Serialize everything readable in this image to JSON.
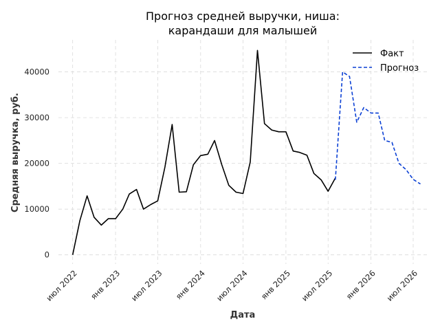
{
  "chart_data": {
    "type": "line",
    "title_lines": [
      "Прогноз средней выручки, ниша:",
      "карандаши для малышей"
    ],
    "xlabel": "Дата",
    "ylabel": "Средняя выручка, руб.",
    "ylim": [
      -2000,
      47000
    ],
    "xlim": [
      "2022-05-01",
      "2026-09-01"
    ],
    "x_ticks": [
      {
        "date": "2022-07-01",
        "label": "июл 2022"
      },
      {
        "date": "2023-01-01",
        "label": "янв 2023"
      },
      {
        "date": "2023-07-01",
        "label": "июл 2023"
      },
      {
        "date": "2024-01-01",
        "label": "янв 2024"
      },
      {
        "date": "2024-07-01",
        "label": "июл 2024"
      },
      {
        "date": "2025-01-01",
        "label": "янв 2025"
      },
      {
        "date": "2025-07-01",
        "label": "июл 2025"
      },
      {
        "date": "2026-01-01",
        "label": "янв 2026"
      },
      {
        "date": "2026-07-01",
        "label": "июл 2026"
      }
    ],
    "y_ticks": [
      {
        "value": 0,
        "label": "0"
      },
      {
        "value": 10000,
        "label": "10000"
      },
      {
        "value": 20000,
        "label": "20000"
      },
      {
        "value": 30000,
        "label": "30000"
      },
      {
        "value": 40000,
        "label": "40000"
      }
    ],
    "grid": true,
    "legend_position": "top-right",
    "series": [
      {
        "name": "Факт",
        "color": "#000000",
        "style": "solid",
        "points": [
          {
            "x": "2022-07-01",
            "y": 0
          },
          {
            "x": "2022-08-01",
            "y": 7500
          },
          {
            "x": "2022-09-01",
            "y": 12900
          },
          {
            "x": "2022-10-01",
            "y": 8200
          },
          {
            "x": "2022-11-01",
            "y": 6500
          },
          {
            "x": "2022-12-01",
            "y": 7900
          },
          {
            "x": "2023-01-01",
            "y": 7900
          },
          {
            "x": "2023-02-01",
            "y": 10000
          },
          {
            "x": "2023-03-01",
            "y": 13300
          },
          {
            "x": "2023-04-01",
            "y": 14300
          },
          {
            "x": "2023-05-01",
            "y": 10000
          },
          {
            "x": "2023-06-01",
            "y": 11000
          },
          {
            "x": "2023-07-01",
            "y": 11800
          },
          {
            "x": "2023-08-01",
            "y": 19200
          },
          {
            "x": "2023-09-01",
            "y": 28500
          },
          {
            "x": "2023-10-01",
            "y": 13700
          },
          {
            "x": "2023-11-01",
            "y": 13800
          },
          {
            "x": "2023-12-01",
            "y": 19700
          },
          {
            "x": "2024-01-01",
            "y": 21700
          },
          {
            "x": "2024-02-01",
            "y": 22000
          },
          {
            "x": "2024-03-01",
            "y": 25000
          },
          {
            "x": "2024-04-01",
            "y": 19700
          },
          {
            "x": "2024-05-01",
            "y": 15200
          },
          {
            "x": "2024-06-01",
            "y": 13700
          },
          {
            "x": "2024-07-01",
            "y": 13400
          },
          {
            "x": "2024-08-01",
            "y": 20300
          },
          {
            "x": "2024-09-01",
            "y": 44700
          },
          {
            "x": "2024-10-01",
            "y": 28700
          },
          {
            "x": "2024-11-01",
            "y": 27300
          },
          {
            "x": "2024-12-01",
            "y": 26900
          },
          {
            "x": "2025-01-01",
            "y": 26900
          },
          {
            "x": "2025-02-01",
            "y": 22700
          },
          {
            "x": "2025-03-01",
            "y": 22400
          },
          {
            "x": "2025-04-01",
            "y": 21800
          },
          {
            "x": "2025-05-01",
            "y": 17800
          },
          {
            "x": "2025-06-01",
            "y": 16400
          },
          {
            "x": "2025-07-01",
            "y": 13900
          },
          {
            "x": "2025-08-01",
            "y": 16800
          }
        ]
      },
      {
        "name": "Прогноз",
        "color": "#0a3fd4",
        "style": "dashed",
        "points": [
          {
            "x": "2025-08-01",
            "y": 16400
          },
          {
            "x": "2025-09-01",
            "y": 40000
          },
          {
            "x": "2025-10-01",
            "y": 39000
          },
          {
            "x": "2025-11-01",
            "y": 29000
          },
          {
            "x": "2025-12-01",
            "y": 32200
          },
          {
            "x": "2026-01-01",
            "y": 31000
          },
          {
            "x": "2026-02-01",
            "y": 31000
          },
          {
            "x": "2026-03-01",
            "y": 25000
          },
          {
            "x": "2026-04-01",
            "y": 24600
          },
          {
            "x": "2026-05-01",
            "y": 20000
          },
          {
            "x": "2026-06-01",
            "y": 18600
          },
          {
            "x": "2026-07-01",
            "y": 16500
          },
          {
            "x": "2026-08-01",
            "y": 15500
          }
        ]
      }
    ]
  }
}
